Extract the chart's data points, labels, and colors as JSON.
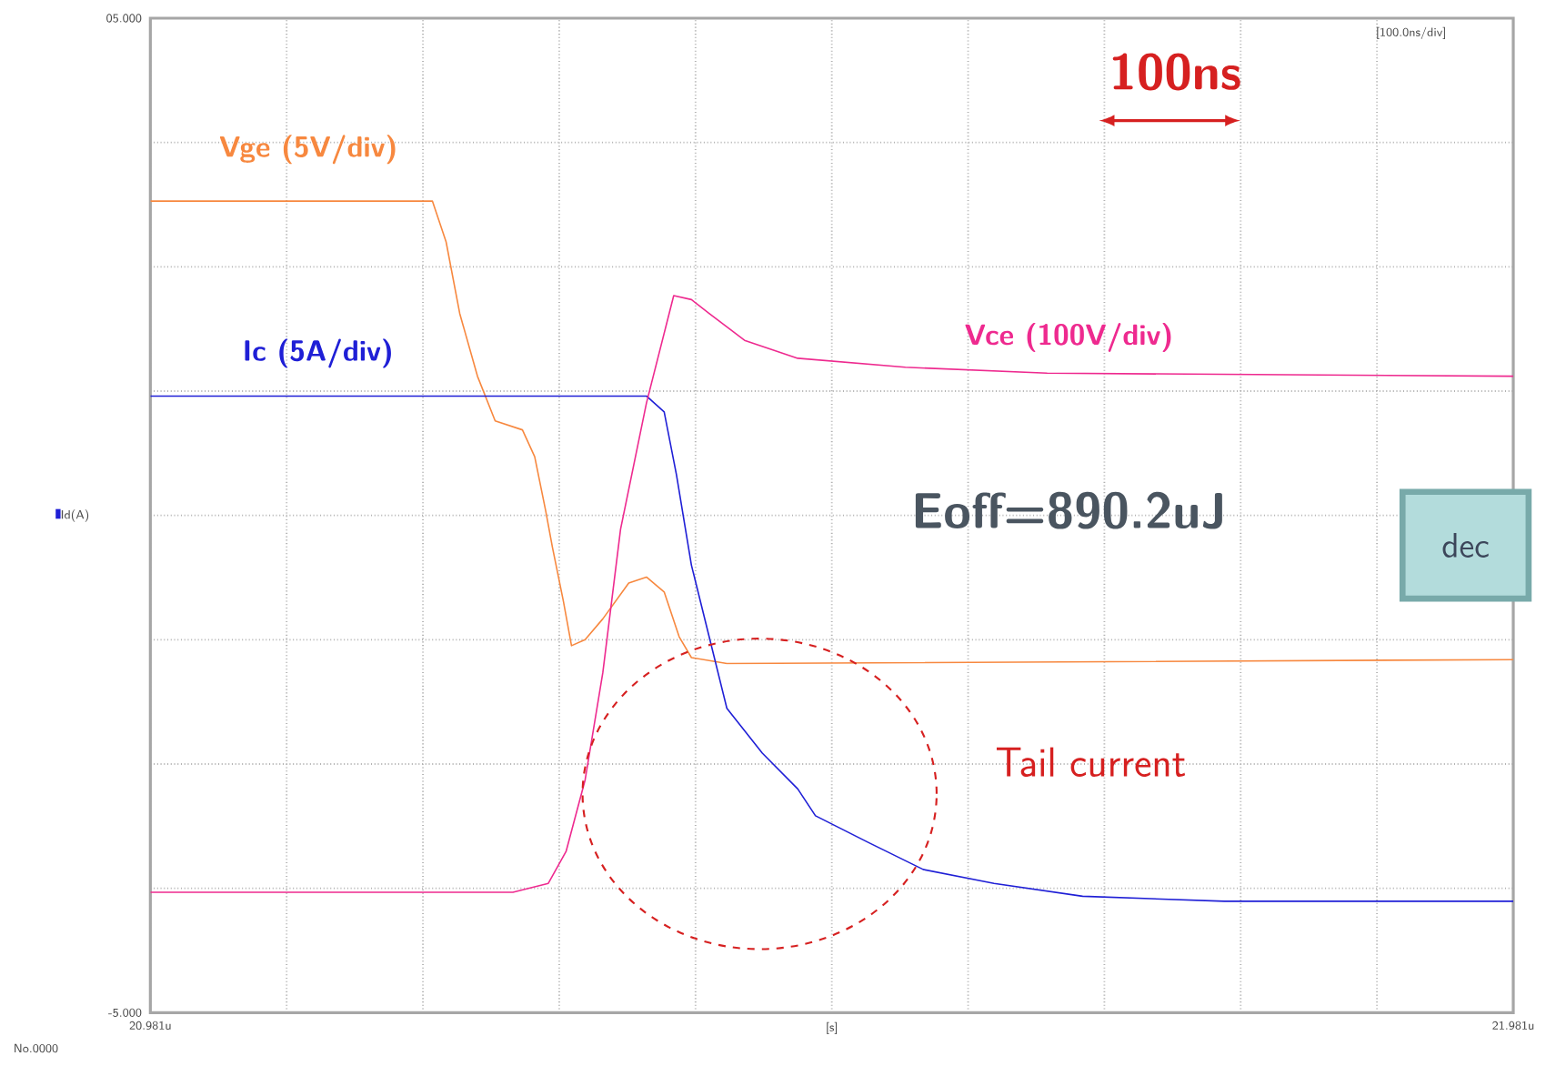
{
  "chart_data": {
    "type": "line",
    "xlabel": "[s]",
    "ylabel": "Id(A)",
    "xlim": [
      20.981,
      21.981
    ],
    "xticks": [
      {
        "value": 20.981,
        "label": "20.981u"
      },
      {
        "value": 21.081,
        "label": null
      },
      {
        "value": 21.181,
        "label": null
      },
      {
        "value": 21.281,
        "label": null
      },
      {
        "value": 21.381,
        "label": null
      },
      {
        "value": 21.481,
        "label": null
      },
      {
        "value": 21.581,
        "label": null
      },
      {
        "value": 21.681,
        "label": null
      },
      {
        "value": 21.781,
        "label": null
      },
      {
        "value": 21.881,
        "label": null
      },
      {
        "value": 21.981,
        "label": "21.981u"
      }
    ],
    "ylim": [
      -5,
      5
    ],
    "yticks": [
      {
        "value": -5,
        "label": "-5.000"
      },
      {
        "value": -3.75,
        "label": null
      },
      {
        "value": -2.5,
        "label": null
      },
      {
        "value": -1.25,
        "label": null
      },
      {
        "value": 0,
        "label": null
      },
      {
        "value": 1.25,
        "label": null
      },
      {
        "value": 2.5,
        "label": null
      },
      {
        "value": 3.75,
        "label": null
      },
      {
        "value": 5,
        "label": "05.000"
      }
    ],
    "grid": true,
    "marker": "none",
    "line_style": "solid",
    "annotations": [
      "[100.0ns/div]",
      "100ns",
      "Eoff=890.2uJ",
      "Tail current",
      "dec",
      "No.0000"
    ],
    "series": [
      {
        "name": "Vge (5V/div)",
        "color": "#f7883f",
        "x": [
          20.981,
          21.188,
          21.198,
          21.208,
          21.221,
          21.234,
          21.254,
          21.263,
          21.271,
          21.276,
          21.284,
          21.29,
          21.3,
          21.313,
          21.332,
          21.345,
          21.358,
          21.369,
          21.378,
          21.404,
          21.981
        ],
        "values": [
          3.16,
          3.16,
          2.75,
          2.03,
          1.4,
          0.95,
          0.86,
          0.59,
          0.05,
          -0.32,
          -0.86,
          -1.31,
          -1.25,
          -1.04,
          -0.68,
          -0.62,
          -0.77,
          -1.22,
          -1.43,
          -1.49,
          -1.45
        ]
      },
      {
        "name": "Ic (5A/div)",
        "color": "#1f1fd6",
        "x": [
          20.981,
          21.345,
          21.358,
          21.367,
          21.378,
          21.391,
          21.404,
          21.43,
          21.456,
          21.469,
          21.508,
          21.548,
          21.6,
          21.665,
          21.769,
          21.981
        ],
        "values": [
          1.2,
          1.2,
          1.04,
          0.41,
          -0.5,
          -1.22,
          -1.94,
          -2.39,
          -2.75,
          -3.02,
          -3.29,
          -3.56,
          -3.7,
          -3.83,
          -3.88,
          -3.88
        ]
      },
      {
        "name": "Vce (100V/div)",
        "color": "#ee2a8f",
        "x": [
          20.981,
          21.247,
          21.273,
          21.286,
          21.3,
          21.313,
          21.326,
          21.345,
          21.365,
          21.378,
          21.391,
          21.417,
          21.456,
          21.535,
          21.639,
          21.981
        ],
        "values": [
          -3.79,
          -3.79,
          -3.7,
          -3.38,
          -2.66,
          -1.58,
          -0.14,
          1.13,
          2.21,
          2.17,
          2.03,
          1.76,
          1.58,
          1.49,
          1.43,
          1.4
        ]
      }
    ]
  }
}
